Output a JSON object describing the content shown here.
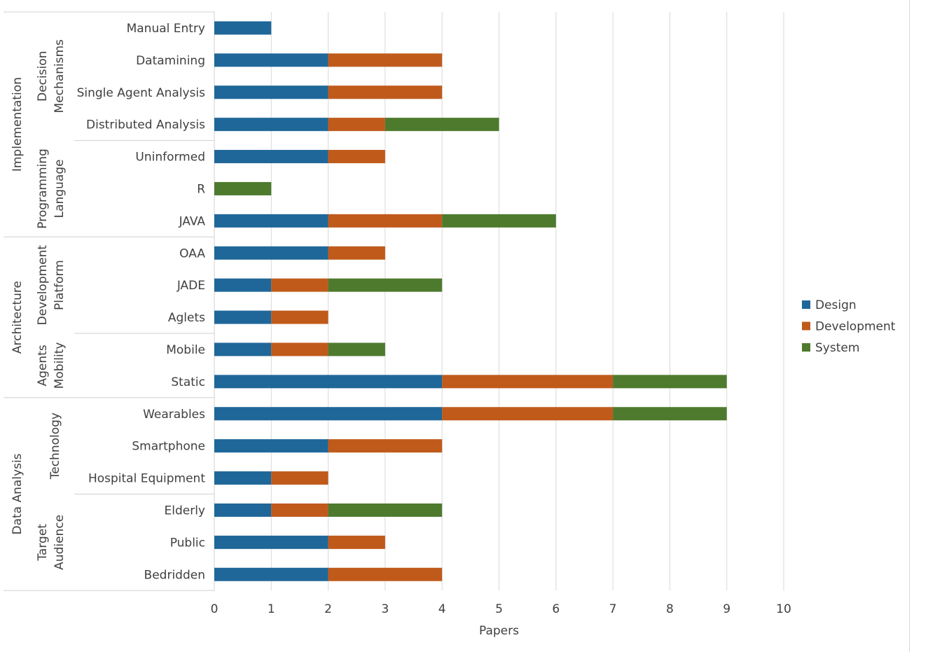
{
  "chart_data": {
    "type": "bar",
    "orientation": "horizontal",
    "stacked": true,
    "title": "",
    "xlabel": "Papers",
    "ylabel": "",
    "xlim": [
      0,
      10
    ],
    "xticks": [
      0,
      1,
      2,
      3,
      4,
      5,
      6,
      7,
      8,
      9,
      10
    ],
    "grid": true,
    "legend_position": "right",
    "categories": [
      "Manual Entry",
      "Datamining",
      "Single Agent Analysis",
      "Distributed Analysis",
      "Uninformed",
      "R",
      "JAVA",
      "OAA",
      "JADE",
      "Aglets",
      "Mobile",
      "Static",
      "Wearables",
      "Smartphone",
      "Hospital Equipment",
      "Elderly",
      "Public",
      "Bedridden"
    ],
    "series": [
      {
        "name": "Design",
        "color": "#1f6799",
        "values": [
          1,
          2,
          2,
          2,
          2,
          0,
          2,
          2,
          1,
          1,
          1,
          4,
          4,
          2,
          1,
          1,
          2,
          2
        ]
      },
      {
        "name": "Development",
        "color": "#c05a1b",
        "values": [
          0,
          2,
          2,
          1,
          1,
          0,
          2,
          1,
          1,
          1,
          1,
          3,
          3,
          2,
          1,
          1,
          1,
          2
        ]
      },
      {
        "name": "System",
        "color": "#4e7a2e",
        "values": [
          0,
          0,
          0,
          2,
          0,
          1,
          2,
          0,
          2,
          0,
          1,
          2,
          2,
          0,
          0,
          2,
          0,
          0
        ]
      }
    ],
    "groups": [
      {
        "label": "Implementation",
        "start": 0,
        "count": 7,
        "subgroups": [
          {
            "label": [
              "Decision",
              "Mechanisms"
            ],
            "start": 0,
            "count": 4
          },
          {
            "label": [
              "Programming",
              "Language"
            ],
            "start": 4,
            "count": 3
          }
        ]
      },
      {
        "label": "Architecture",
        "start": 7,
        "count": 5,
        "subgroups": [
          {
            "label": [
              "Development",
              "Platform"
            ],
            "start": 7,
            "count": 3
          },
          {
            "label": [
              "Agents",
              "Mobility"
            ],
            "start": 10,
            "count": 2
          }
        ]
      },
      {
        "label": "Data Analysis",
        "start": 12,
        "count": 6,
        "subgroups": [
          {
            "label": [
              "Technology"
            ],
            "start": 12,
            "count": 3
          },
          {
            "label": [
              "Target",
              "Audience"
            ],
            "start": 15,
            "count": 3
          }
        ]
      }
    ]
  }
}
